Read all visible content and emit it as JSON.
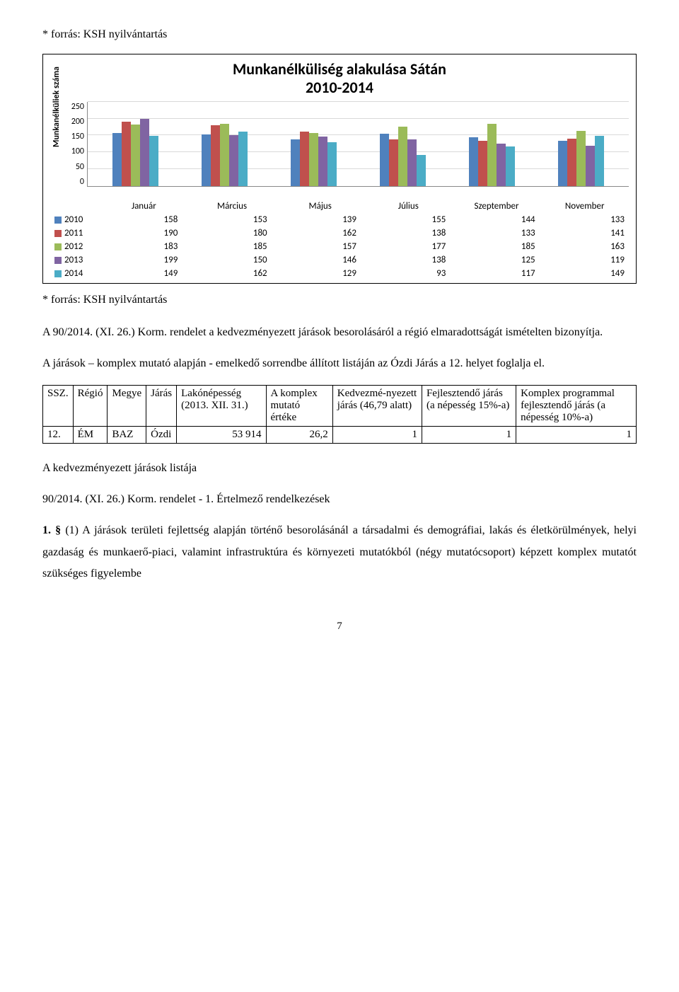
{
  "notes": {
    "source": "* forrás: KSH nyilvántartás"
  },
  "chart": {
    "type": "bar",
    "title_line1": "Munkanélküliség alakulása Sátán",
    "title_line2": "2010-2014",
    "ylabel": "Munkanélküliek száma",
    "ylim": [
      0,
      250
    ],
    "yticks": [
      250,
      200,
      150,
      100,
      50,
      0
    ],
    "categories": [
      "Január",
      "Március",
      "Május",
      "Július",
      "Szeptember",
      "November"
    ],
    "series": [
      "2010",
      "2011",
      "2012",
      "2013",
      "2014"
    ],
    "series_colors": [
      "#4f81bd",
      "#c0504d",
      "#9bbb59",
      "#8064a2",
      "#4bacc6"
    ],
    "values": {
      "2010": [
        158,
        153,
        139,
        155,
        144,
        133
      ],
      "2011": [
        190,
        180,
        162,
        138,
        133,
        141
      ],
      "2012": [
        183,
        185,
        157,
        177,
        185,
        163
      ],
      "2013": [
        199,
        150,
        146,
        138,
        125,
        119
      ],
      "2014": [
        149,
        162,
        129,
        93,
        117,
        149
      ]
    },
    "grid_color": "#d9d9d9",
    "axis_color": "#888888",
    "label_fontsize": 13,
    "title_fontsize": 22
  },
  "text": {
    "para1_a": "A 90/2014. (XI. 26.) Korm. rendelet ",
    "para1_b": "a kedvezményezett járások besorolásáról a régió elmaradottságát ismételten bizonyítja.",
    "para2": "A járások – komplex mutató alapján - emelkedő sorrendbe állított listáján az Ózdi Járás a 12. helyet foglalja el.",
    "list_title": "A kedvezményezett járások listája",
    "regulation": "90/2014. (XI. 26.) Korm. rendelet - 1. Értelmező rendelkezések",
    "clause": "1. § (1) A járások területi fejlettség alapján történő besorolásánál a társadalmi és demográfiai, lakás és életkörülmények, helyi gazdaság és munkaerő-piaci, valamint infrastruktúra és környezeti mutatókból (négy mutatócsoport) képzett komplex mutatót szükséges figyelembe",
    "clause_lead": "1. § "
  },
  "matrix": {
    "headers": {
      "ssz": "SSZ.",
      "regio": "Régió",
      "megye": "Megye",
      "jaras": "Járás",
      "lakon": "Lakónépesség (2013. XII. 31.)",
      "komplex": "A komplex mutató értéke",
      "kedv": "Kedvezmé-nyezett járás (46,79 alatt)",
      "fejl": "Fejlesztendő járás (a népesség 15%-a)",
      "kompprog": "Komplex programmal fejlesztendő járás (a népesség 10%-a)"
    },
    "row": {
      "ssz": "12.",
      "regio": "ÉM",
      "megye": "BAZ",
      "jaras": "Ózdi",
      "lakon": "53 914",
      "komplex": "26,2",
      "kedv": "1",
      "fejl": "1",
      "kompprog": "1"
    }
  },
  "page": "7"
}
